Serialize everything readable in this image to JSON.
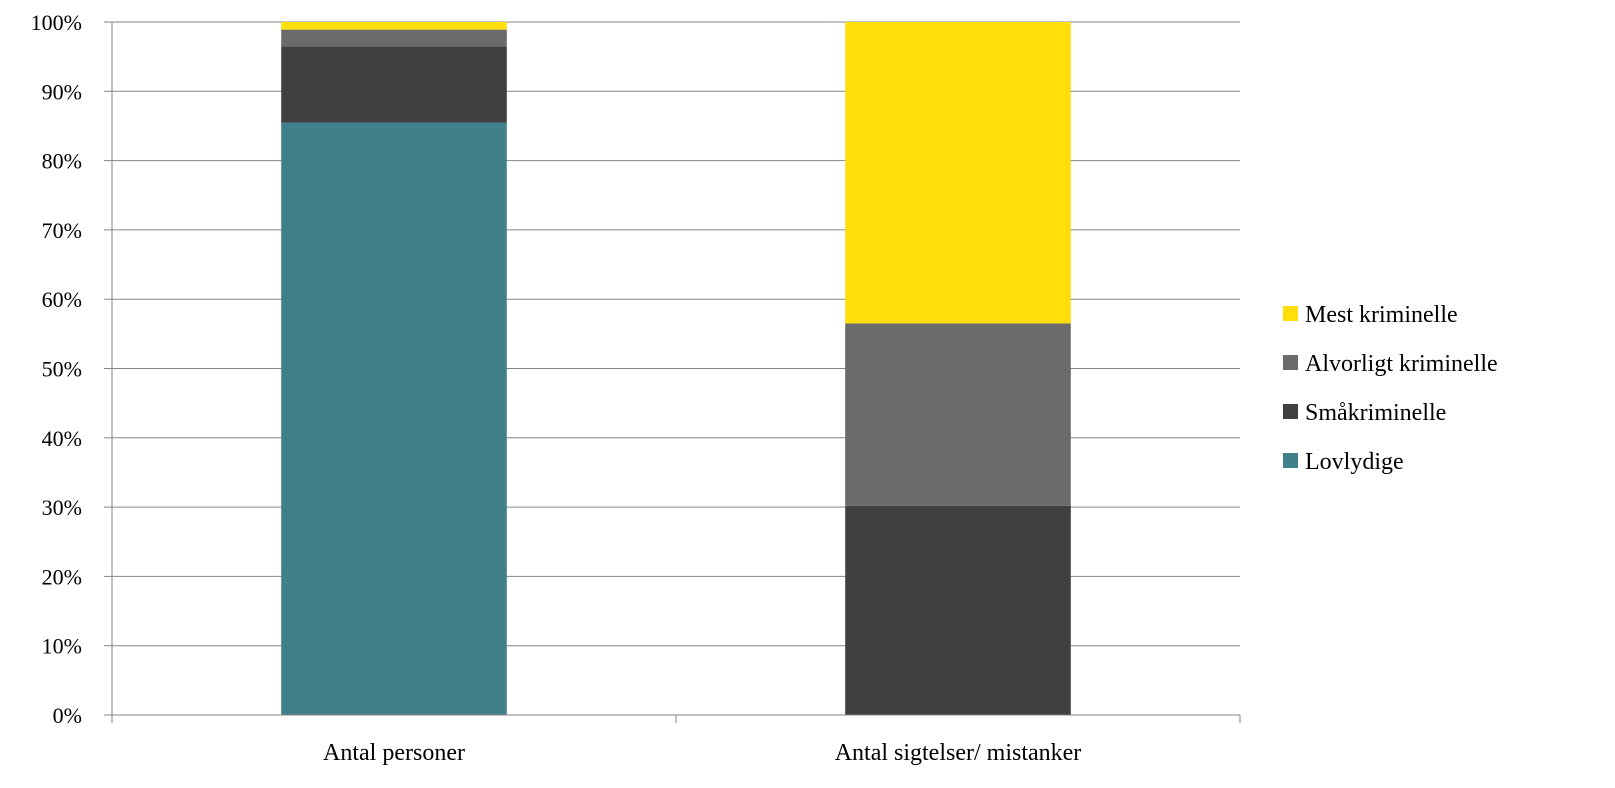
{
  "chart_data": {
    "type": "bar",
    "stacked": true,
    "percent": true,
    "categories": [
      "Antal personer",
      "Antal sigtelser/ mistanker"
    ],
    "series": [
      {
        "name": "Lovlydige",
        "color": "#40808A",
        "values": [
          85.5,
          0
        ]
      },
      {
        "name": "Småkriminelle",
        "color": "#404040",
        "values": [
          11.0,
          30.2
        ]
      },
      {
        "name": "Alvorligt kriminelle",
        "color": "#6B6B6B",
        "values": [
          2.4,
          26.3
        ]
      },
      {
        "name": "Mest kriminelle",
        "color": "#FFDE0A",
        "values": [
          1.1,
          43.5
        ]
      }
    ],
    "ylim": [
      0,
      100
    ],
    "yticks": [
      "0%",
      "10%",
      "20%",
      "30%",
      "40%",
      "50%",
      "60%",
      "70%",
      "80%",
      "90%",
      "100%"
    ],
    "grid": true,
    "legend_position": "right",
    "legend_order": [
      "Mest kriminelle",
      "Alvorligt kriminelle",
      "Småkriminelle",
      "Lovlydige"
    ],
    "title": "",
    "xlabel": "",
    "ylabel": ""
  }
}
